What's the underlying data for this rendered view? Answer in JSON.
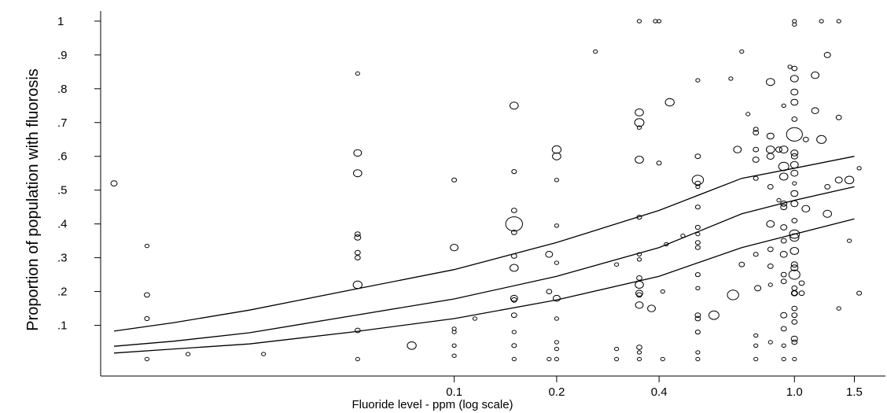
{
  "chart_data": {
    "type": "scatter",
    "title": "",
    "xlabel": "Fluoride level - ppm (log scale)",
    "ylabel": "Proportion of population with fluorosis",
    "x_scale": "log",
    "xlim": [
      0.01,
      1.7
    ],
    "ylim": [
      -0.05,
      1.03
    ],
    "x_ticks": [
      {
        "value": 0.1,
        "label": "0.1"
      },
      {
        "value": 0.2,
        "label": "0.2"
      },
      {
        "value": 0.4,
        "label": "0.4"
      },
      {
        "value": 1.0,
        "label": "1.0"
      },
      {
        "value": 1.5,
        "label": "1.5"
      }
    ],
    "y_ticks": [
      {
        "value": 0.1,
        "label": ".1"
      },
      {
        "value": 0.2,
        "label": ".2"
      },
      {
        "value": 0.3,
        "label": ".3"
      },
      {
        "value": 0.4,
        "label": ".4"
      },
      {
        "value": 0.5,
        "label": ".5"
      },
      {
        "value": 0.6,
        "label": ".6"
      },
      {
        "value": 0.7,
        "label": ".7"
      },
      {
        "value": 0.8,
        "label": ".8"
      },
      {
        "value": 0.9,
        "label": ".9"
      },
      {
        "value": 1.0,
        "label": "1"
      }
    ],
    "grid": false,
    "legend": "none",
    "marker": "open-circle-sized-by-weight",
    "points": [
      {
        "x": 0.01,
        "y": 0.52,
        "w": 3
      },
      {
        "x": 0.0125,
        "y": 0.335,
        "w": 1
      },
      {
        "x": 0.0125,
        "y": 0.19,
        "w": 2
      },
      {
        "x": 0.0125,
        "y": 0.12,
        "w": 1.5
      },
      {
        "x": 0.0125,
        "y": 0.0,
        "w": 1
      },
      {
        "x": 0.0165,
        "y": 0.015,
        "w": 1
      },
      {
        "x": 0.0275,
        "y": 0.015,
        "w": 1
      },
      {
        "x": 0.052,
        "y": 0.845,
        "w": 1
      },
      {
        "x": 0.052,
        "y": 0.61,
        "w": 5
      },
      {
        "x": 0.052,
        "y": 0.55,
        "w": 6
      },
      {
        "x": 0.052,
        "y": 0.37,
        "w": 2
      },
      {
        "x": 0.052,
        "y": 0.36,
        "w": 3
      },
      {
        "x": 0.052,
        "y": 0.315,
        "w": 2
      },
      {
        "x": 0.052,
        "y": 0.3,
        "w": 2
      },
      {
        "x": 0.052,
        "y": 0.22,
        "w": 7
      },
      {
        "x": 0.052,
        "y": 0.085,
        "w": 2
      },
      {
        "x": 0.052,
        "y": 0.0,
        "w": 1
      },
      {
        "x": 0.075,
        "y": 0.04,
        "w": 7
      },
      {
        "x": 0.1,
        "y": 0.53,
        "w": 1.5
      },
      {
        "x": 0.1,
        "y": 0.33,
        "w": 5
      },
      {
        "x": 0.1,
        "y": 0.09,
        "w": 1
      },
      {
        "x": 0.1,
        "y": 0.08,
        "w": 1
      },
      {
        "x": 0.1,
        "y": 0.04,
        "w": 1
      },
      {
        "x": 0.1,
        "y": 0.01,
        "w": 1
      },
      {
        "x": 0.115,
        "y": 0.12,
        "w": 1
      },
      {
        "x": 0.15,
        "y": 0.75,
        "w": 6
      },
      {
        "x": 0.15,
        "y": 0.555,
        "w": 1.5
      },
      {
        "x": 0.15,
        "y": 0.44,
        "w": 2
      },
      {
        "x": 0.15,
        "y": 0.4,
        "w": 28
      },
      {
        "x": 0.15,
        "y": 0.375,
        "w": 2
      },
      {
        "x": 0.15,
        "y": 0.305,
        "w": 2
      },
      {
        "x": 0.15,
        "y": 0.27,
        "w": 6
      },
      {
        "x": 0.15,
        "y": 0.18,
        "w": 4
      },
      {
        "x": 0.15,
        "y": 0.175,
        "w": 2
      },
      {
        "x": 0.15,
        "y": 0.13,
        "w": 2
      },
      {
        "x": 0.15,
        "y": 0.08,
        "w": 1
      },
      {
        "x": 0.15,
        "y": 0.04,
        "w": 1.5
      },
      {
        "x": 0.15,
        "y": 0.0,
        "w": 1
      },
      {
        "x": 0.19,
        "y": 0.31,
        "w": 4
      },
      {
        "x": 0.19,
        "y": 0.2,
        "w": 2
      },
      {
        "x": 0.19,
        "y": 0.0,
        "w": 1
      },
      {
        "x": 0.2,
        "y": 0.62,
        "w": 7
      },
      {
        "x": 0.2,
        "y": 0.6,
        "w": 6
      },
      {
        "x": 0.2,
        "y": 0.53,
        "w": 1
      },
      {
        "x": 0.2,
        "y": 0.395,
        "w": 1
      },
      {
        "x": 0.2,
        "y": 0.285,
        "w": 1
      },
      {
        "x": 0.2,
        "y": 0.18,
        "w": 4
      },
      {
        "x": 0.2,
        "y": 0.12,
        "w": 1
      },
      {
        "x": 0.2,
        "y": 0.05,
        "w": 1
      },
      {
        "x": 0.2,
        "y": 0.03,
        "w": 1
      },
      {
        "x": 0.2,
        "y": 0.0,
        "w": 1
      },
      {
        "x": 0.26,
        "y": 0.91,
        "w": 1
      },
      {
        "x": 0.3,
        "y": 0.28,
        "w": 1
      },
      {
        "x": 0.3,
        "y": 0.03,
        "w": 1
      },
      {
        "x": 0.3,
        "y": 0.0,
        "w": 1
      },
      {
        "x": 0.35,
        "y": 1.0,
        "w": 1
      },
      {
        "x": 0.35,
        "y": 0.73,
        "w": 6
      },
      {
        "x": 0.35,
        "y": 0.7,
        "w": 8
      },
      {
        "x": 0.35,
        "y": 0.685,
        "w": 1
      },
      {
        "x": 0.35,
        "y": 0.59,
        "w": 6
      },
      {
        "x": 0.35,
        "y": 0.42,
        "w": 1.5
      },
      {
        "x": 0.35,
        "y": 0.31,
        "w": 1
      },
      {
        "x": 0.35,
        "y": 0.295,
        "w": 1
      },
      {
        "x": 0.35,
        "y": 0.24,
        "w": 2
      },
      {
        "x": 0.35,
        "y": 0.22,
        "w": 6
      },
      {
        "x": 0.35,
        "y": 0.195,
        "w": 4
      },
      {
        "x": 0.35,
        "y": 0.19,
        "w": 2
      },
      {
        "x": 0.35,
        "y": 0.16,
        "w": 5
      },
      {
        "x": 0.35,
        "y": 0.035,
        "w": 2
      },
      {
        "x": 0.35,
        "y": 0.02,
        "w": 1
      },
      {
        "x": 0.35,
        "y": 0.0,
        "w": 1
      },
      {
        "x": 0.38,
        "y": 0.15,
        "w": 5
      },
      {
        "x": 0.39,
        "y": 1.0,
        "w": 1
      },
      {
        "x": 0.4,
        "y": 1.0,
        "w": 1
      },
      {
        "x": 0.4,
        "y": 0.58,
        "w": 1.5
      },
      {
        "x": 0.41,
        "y": 0.2,
        "w": 1
      },
      {
        "x": 0.41,
        "y": 0.0,
        "w": 1
      },
      {
        "x": 0.42,
        "y": 0.34,
        "w": 1
      },
      {
        "x": 0.43,
        "y": 0.76,
        "w": 7
      },
      {
        "x": 0.47,
        "y": 0.365,
        "w": 1
      },
      {
        "x": 0.52,
        "y": 0.825,
        "w": 1
      },
      {
        "x": 0.52,
        "y": 0.6,
        "w": 2
      },
      {
        "x": 0.52,
        "y": 0.53,
        "w": 12
      },
      {
        "x": 0.52,
        "y": 0.52,
        "w": 2
      },
      {
        "x": 0.52,
        "y": 0.51,
        "w": 1
      },
      {
        "x": 0.52,
        "y": 0.45,
        "w": 1.5
      },
      {
        "x": 0.52,
        "y": 0.39,
        "w": 1.5
      },
      {
        "x": 0.52,
        "y": 0.37,
        "w": 1
      },
      {
        "x": 0.52,
        "y": 0.345,
        "w": 1.5
      },
      {
        "x": 0.52,
        "y": 0.33,
        "w": 1.5
      },
      {
        "x": 0.52,
        "y": 0.25,
        "w": 1.5
      },
      {
        "x": 0.52,
        "y": 0.21,
        "w": 1
      },
      {
        "x": 0.52,
        "y": 0.13,
        "w": 2
      },
      {
        "x": 0.52,
        "y": 0.12,
        "w": 2
      },
      {
        "x": 0.52,
        "y": 0.08,
        "w": 1.5
      },
      {
        "x": 0.52,
        "y": 0.02,
        "w": 1
      },
      {
        "x": 0.52,
        "y": 0.0,
        "w": 1
      },
      {
        "x": 0.58,
        "y": 0.13,
        "w": 9
      },
      {
        "x": 0.65,
        "y": 0.83,
        "w": 1
      },
      {
        "x": 0.66,
        "y": 0.19,
        "w": 12
      },
      {
        "x": 0.68,
        "y": 0.62,
        "w": 5
      },
      {
        "x": 0.7,
        "y": 0.91,
        "w": 1
      },
      {
        "x": 0.7,
        "y": 0.28,
        "w": 2
      },
      {
        "x": 0.73,
        "y": 0.725,
        "w": 1
      },
      {
        "x": 0.77,
        "y": 0.68,
        "w": 1.5
      },
      {
        "x": 0.77,
        "y": 0.67,
        "w": 2
      },
      {
        "x": 0.77,
        "y": 0.62,
        "w": 2
      },
      {
        "x": 0.77,
        "y": 0.59,
        "w": 3
      },
      {
        "x": 0.77,
        "y": 0.535,
        "w": 1.5
      },
      {
        "x": 0.77,
        "y": 0.31,
        "w": 1.5
      },
      {
        "x": 0.77,
        "y": 0.07,
        "w": 1
      },
      {
        "x": 0.77,
        "y": 0.04,
        "w": 1
      },
      {
        "x": 0.77,
        "y": 0.0,
        "w": 1
      },
      {
        "x": 0.78,
        "y": 0.21,
        "w": 3
      },
      {
        "x": 0.85,
        "y": 0.82,
        "w": 6
      },
      {
        "x": 0.85,
        "y": 0.66,
        "w": 4
      },
      {
        "x": 0.85,
        "y": 0.62,
        "w": 6
      },
      {
        "x": 0.85,
        "y": 0.6,
        "w": 4
      },
      {
        "x": 0.85,
        "y": 0.51,
        "w": 2
      },
      {
        "x": 0.85,
        "y": 0.4,
        "w": 5
      },
      {
        "x": 0.85,
        "y": 0.325,
        "w": 2
      },
      {
        "x": 0.85,
        "y": 0.275,
        "w": 2
      },
      {
        "x": 0.85,
        "y": 0.22,
        "w": 1
      },
      {
        "x": 0.85,
        "y": 0.05,
        "w": 1
      },
      {
        "x": 0.9,
        "y": 0.62,
        "w": 3
      },
      {
        "x": 0.9,
        "y": 0.47,
        "w": 1
      },
      {
        "x": 0.93,
        "y": 0.75,
        "w": 1
      },
      {
        "x": 0.93,
        "y": 0.62,
        "w": 6
      },
      {
        "x": 0.93,
        "y": 0.57,
        "w": 9
      },
      {
        "x": 0.93,
        "y": 0.54,
        "w": 6
      },
      {
        "x": 0.93,
        "y": 0.46,
        "w": 3
      },
      {
        "x": 0.93,
        "y": 0.45,
        "w": 3
      },
      {
        "x": 0.93,
        "y": 0.39,
        "w": 3
      },
      {
        "x": 0.93,
        "y": 0.35,
        "w": 2
      },
      {
        "x": 0.93,
        "y": 0.31,
        "w": 4
      },
      {
        "x": 0.93,
        "y": 0.25,
        "w": 2
      },
      {
        "x": 0.93,
        "y": 0.23,
        "w": 2
      },
      {
        "x": 0.93,
        "y": 0.13,
        "w": 3
      },
      {
        "x": 0.93,
        "y": 0.09,
        "w": 2
      },
      {
        "x": 0.93,
        "y": 0.04,
        "w": 1
      },
      {
        "x": 0.93,
        "y": 0.0,
        "w": 1
      },
      {
        "x": 0.97,
        "y": 0.865,
        "w": 1
      },
      {
        "x": 1.0,
        "y": 1.0,
        "w": 1
      },
      {
        "x": 1.0,
        "y": 0.99,
        "w": 1
      },
      {
        "x": 1.0,
        "y": 0.86,
        "w": 2
      },
      {
        "x": 1.0,
        "y": 0.83,
        "w": 5
      },
      {
        "x": 1.0,
        "y": 0.79,
        "w": 4
      },
      {
        "x": 1.0,
        "y": 0.76,
        "w": 4
      },
      {
        "x": 1.0,
        "y": 0.71,
        "w": 2
      },
      {
        "x": 1.0,
        "y": 0.665,
        "w": 25
      },
      {
        "x": 1.0,
        "y": 0.61,
        "w": 4
      },
      {
        "x": 1.0,
        "y": 0.6,
        "w": 3
      },
      {
        "x": 1.0,
        "y": 0.575,
        "w": 5
      },
      {
        "x": 1.0,
        "y": 0.55,
        "w": 4
      },
      {
        "x": 1.0,
        "y": 0.52,
        "w": 1
      },
      {
        "x": 1.0,
        "y": 0.49,
        "w": 4
      },
      {
        "x": 1.0,
        "y": 0.46,
        "w": 4
      },
      {
        "x": 1.0,
        "y": 0.41,
        "w": 2
      },
      {
        "x": 1.0,
        "y": 0.37,
        "w": 9
      },
      {
        "x": 1.0,
        "y": 0.36,
        "w": 7
      },
      {
        "x": 1.0,
        "y": 0.32,
        "w": 6
      },
      {
        "x": 1.0,
        "y": 0.28,
        "w": 3
      },
      {
        "x": 1.0,
        "y": 0.27,
        "w": 4
      },
      {
        "x": 1.0,
        "y": 0.25,
        "w": 11
      },
      {
        "x": 1.0,
        "y": 0.21,
        "w": 2
      },
      {
        "x": 1.0,
        "y": 0.195,
        "w": 3
      },
      {
        "x": 1.0,
        "y": 0.195,
        "w": 2
      },
      {
        "x": 1.0,
        "y": 0.15,
        "w": 2
      },
      {
        "x": 1.0,
        "y": 0.13,
        "w": 2
      },
      {
        "x": 1.0,
        "y": 0.11,
        "w": 2
      },
      {
        "x": 1.0,
        "y": 0.06,
        "w": 3
      },
      {
        "x": 1.0,
        "y": 0.05,
        "w": 2
      },
      {
        "x": 1.0,
        "y": 0.0,
        "w": 1
      },
      {
        "x": 1.05,
        "y": 0.225,
        "w": 2
      },
      {
        "x": 1.05,
        "y": 0.195,
        "w": 2
      },
      {
        "x": 1.08,
        "y": 0.65,
        "w": 2
      },
      {
        "x": 1.08,
        "y": 0.445,
        "w": 5
      },
      {
        "x": 1.15,
        "y": 0.84,
        "w": 5
      },
      {
        "x": 1.15,
        "y": 0.735,
        "w": 4
      },
      {
        "x": 1.2,
        "y": 1.0,
        "w": 1
      },
      {
        "x": 1.2,
        "y": 0.65,
        "w": 8
      },
      {
        "x": 1.25,
        "y": 0.9,
        "w": 3
      },
      {
        "x": 1.25,
        "y": 0.51,
        "w": 2
      },
      {
        "x": 1.25,
        "y": 0.43,
        "w": 6
      },
      {
        "x": 1.35,
        "y": 1.0,
        "w": 1
      },
      {
        "x": 1.35,
        "y": 0.715,
        "w": 2
      },
      {
        "x": 1.35,
        "y": 0.53,
        "w": 4
      },
      {
        "x": 1.35,
        "y": 0.15,
        "w": 1
      },
      {
        "x": 1.45,
        "y": 0.53,
        "w": 7
      },
      {
        "x": 1.45,
        "y": 0.35,
        "w": 1
      },
      {
        "x": 1.55,
        "y": 0.565,
        "w": 1
      },
      {
        "x": 1.55,
        "y": 0.195,
        "w": 1.5
      }
    ],
    "curves": [
      {
        "x": [
          0.01,
          0.015,
          0.025,
          0.05,
          0.1,
          0.2,
          0.4,
          0.7,
          1.0,
          1.5
        ],
        "y": [
          0.083,
          0.108,
          0.145,
          0.205,
          0.265,
          0.345,
          0.44,
          0.535,
          0.565,
          0.6
        ]
      },
      {
        "x": [
          0.01,
          0.015,
          0.025,
          0.05,
          0.1,
          0.2,
          0.4,
          0.7,
          1.0,
          1.5
        ],
        "y": [
          0.038,
          0.053,
          0.078,
          0.128,
          0.178,
          0.245,
          0.33,
          0.43,
          0.47,
          0.51
        ]
      },
      {
        "x": [
          0.01,
          0.015,
          0.025,
          0.05,
          0.1,
          0.2,
          0.4,
          0.7,
          1.0,
          1.5
        ],
        "y": [
          0.018,
          0.03,
          0.045,
          0.08,
          0.12,
          0.175,
          0.245,
          0.33,
          0.37,
          0.415
        ]
      }
    ]
  }
}
